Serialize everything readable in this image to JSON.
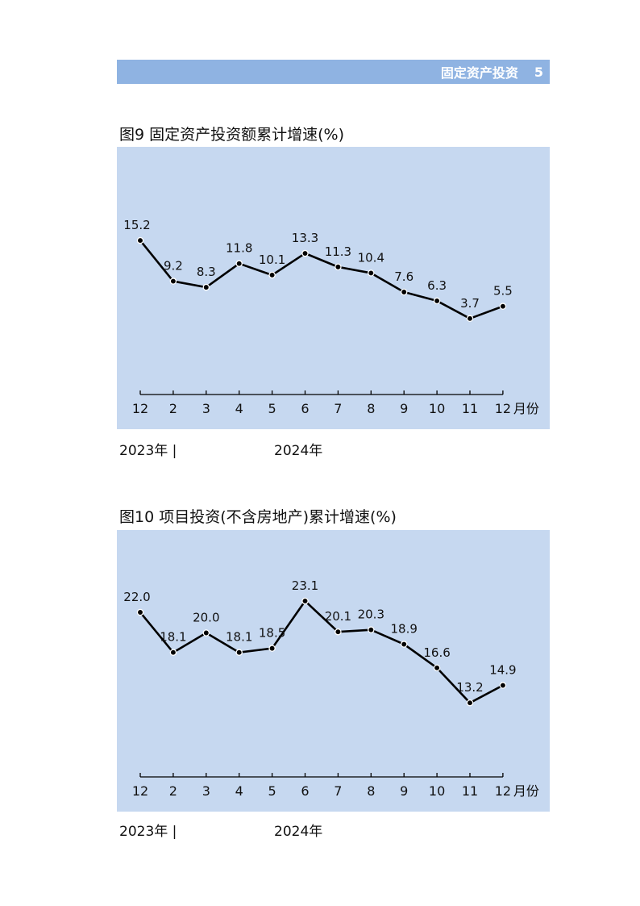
{
  "header": {
    "section_title": "固定资产投资",
    "page_number": "5"
  },
  "x_unit": "月份",
  "chart_data": [
    {
      "type": "line",
      "title": "图9  固定资产投资额累计增速(%)",
      "categories": [
        "12",
        "2",
        "3",
        "4",
        "5",
        "6",
        "7",
        "8",
        "9",
        "10",
        "11",
        "12"
      ],
      "values": [
        15.2,
        9.2,
        8.3,
        11.8,
        10.1,
        13.3,
        11.3,
        10.4,
        7.6,
        6.3,
        3.7,
        5.5
      ],
      "year_labels": [
        "2023年",
        "2024年"
      ],
      "ylim": [
        -7.5,
        29
      ],
      "grid": false,
      "colors": {
        "line": "#000000",
        "background": "#c6d8f0"
      }
    },
    {
      "type": "line",
      "title": "图10  项目投资(不含房地产)累计增速(%)",
      "categories": [
        "12",
        "2",
        "3",
        "4",
        "5",
        "6",
        "7",
        "8",
        "9",
        "10",
        "11",
        "12"
      ],
      "values": [
        22.0,
        18.1,
        20.0,
        18.1,
        18.5,
        23.1,
        20.1,
        20.3,
        18.9,
        16.6,
        13.2,
        14.9
      ],
      "year_labels": [
        "2023年",
        "2024年"
      ],
      "ylim": [
        6,
        30
      ],
      "grid": false,
      "colors": {
        "line": "#000000",
        "background": "#c6d8f0"
      }
    }
  ]
}
